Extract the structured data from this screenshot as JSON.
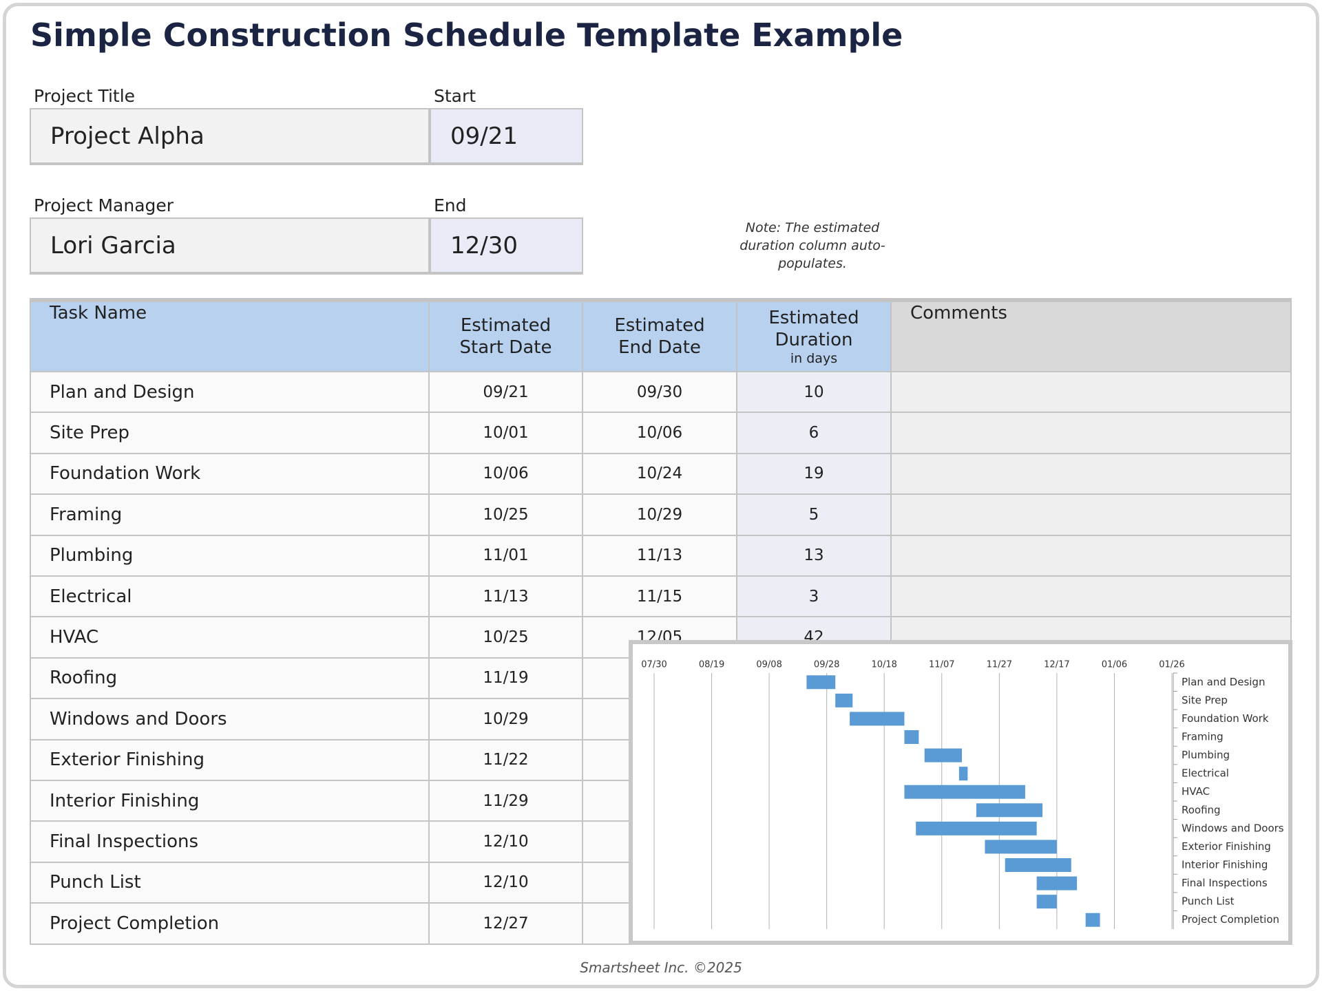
{
  "header": {
    "title": "Simple Construction Schedule Template Example"
  },
  "fields": [
    {
      "label": "Project Title",
      "value": "Project Alpha"
    },
    {
      "label": "Start",
      "value": "09/21"
    },
    {
      "label": "Project Manager",
      "value": "Lori Garcia"
    },
    {
      "label": "End",
      "value": "12/30"
    }
  ],
  "note": "Note: The estimated duration column auto-populates.",
  "table": {
    "columns": [
      "Task Name",
      "Estimated Start Date",
      "Estimated End Date",
      "Estimated Duration",
      "Comments"
    ],
    "duration_unit": "in days",
    "rows": [
      [
        "Plan and Design",
        "09/21",
        "09/30",
        10
      ],
      [
        "Site Prep",
        "10/01",
        "10/06",
        6
      ],
      [
        "Foundation Work",
        "10/06",
        "10/24",
        19
      ],
      [
        "Framing",
        "10/25",
        "10/29",
        5
      ],
      [
        "Plumbing",
        "11/01",
        "11/13",
        13
      ],
      [
        "Electrical",
        "11/13",
        "11/15",
        3
      ],
      [
        "HVAC",
        "10/25",
        "12/05",
        42
      ],
      [
        "Roofing",
        "11/19"
      ],
      [
        "Windows and Doors",
        "10/29"
      ],
      [
        "Exterior Finishing",
        "11/22"
      ],
      [
        "Interior Finishing",
        "11/29"
      ],
      [
        "Final Inspections",
        "12/10"
      ],
      [
        "Punch List",
        "12/10"
      ],
      [
        "Project Completion",
        "12/27"
      ]
    ]
  },
  "chart_data": {
    "type": "gantt",
    "categories": [
      "Plan and Design",
      "Site Prep",
      "Foundation Work",
      "Framing",
      "Plumbing",
      "Electrical",
      "HVAC",
      "Roofing",
      "Windows and Doors",
      "Exterior Finishing",
      "Interior Finishing",
      "Final Inspections",
      "Punch List",
      "Project Completion"
    ],
    "start": [
      "09/21",
      "10/01",
      "10/06",
      "10/25",
      "11/01",
      "11/13",
      "10/25",
      "11/19",
      "10/29",
      "11/22",
      "11/29",
      "12/10",
      "12/10",
      "12/27"
    ],
    "values": [
      10,
      6,
      19,
      5,
      13,
      3,
      42,
      23,
      42,
      25,
      23,
      14,
      7,
      5
    ],
    "color": "#5b9bd5",
    "xlim": [
      "07/30",
      "01/26"
    ],
    "xticks": [
      "07/30",
      "08/19",
      "09/08",
      "09/28",
      "10/18",
      "11/07",
      "11/27",
      "12/17",
      "01/06",
      "01/26"
    ],
    "grid": true
  },
  "footer": "Smartsheet Inc. ©2025"
}
